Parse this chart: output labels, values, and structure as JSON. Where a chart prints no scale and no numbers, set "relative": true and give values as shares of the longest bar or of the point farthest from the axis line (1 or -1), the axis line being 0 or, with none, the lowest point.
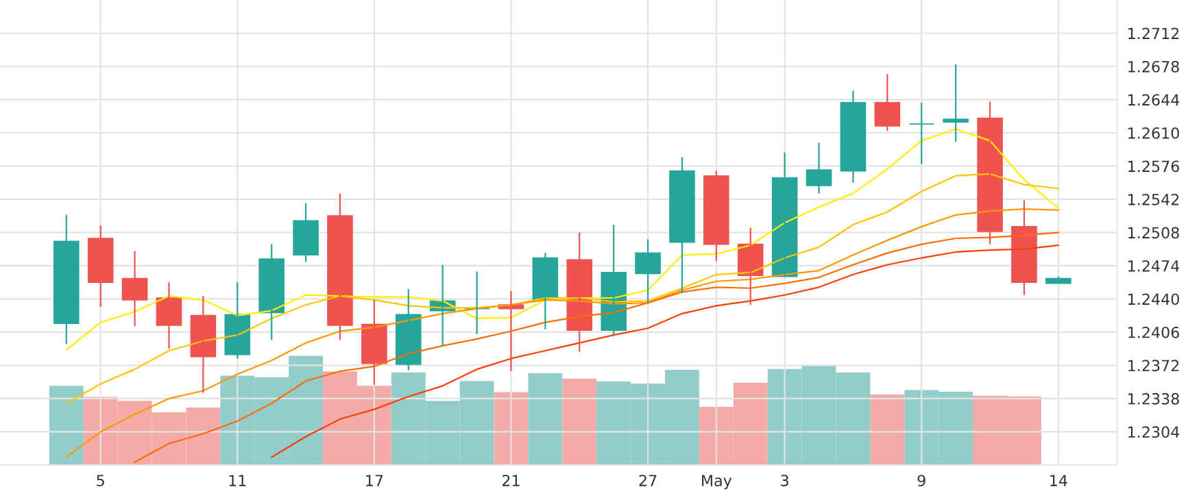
{
  "chart_data": [
    {
      "type": "candlestick",
      "categories": [
        null,
        "5",
        null,
        null,
        null,
        "11",
        null,
        null,
        null,
        "17",
        null,
        null,
        null,
        "21",
        null,
        null,
        null,
        "27",
        null,
        "May",
        null,
        "3",
        null,
        null,
        null,
        "9",
        null,
        null,
        null,
        "14"
      ],
      "ohlc": [
        [
          1.2415,
          1.2526,
          1.2394,
          1.2499
        ],
        [
          1.2502,
          1.2515,
          1.2432,
          1.2457
        ],
        [
          1.2461,
          1.2489,
          1.2412,
          1.2439
        ],
        [
          1.2441,
          1.2457,
          1.2389,
          1.2413
        ],
        [
          1.2423,
          1.2443,
          1.2344,
          1.2381
        ],
        [
          1.2383,
          1.2457,
          1.2379,
          1.2424
        ],
        [
          1.2426,
          1.2496,
          1.2398,
          1.2481
        ],
        [
          1.2485,
          1.2538,
          1.2478,
          1.252
        ],
        [
          1.2525,
          1.2548,
          1.2398,
          1.2413
        ],
        [
          1.2414,
          1.2439,
          1.2352,
          1.2374
        ],
        [
          1.2373,
          1.245,
          1.2367,
          1.2424
        ],
        [
          1.2428,
          1.2475,
          1.2392,
          1.2438
        ],
        [
          1.243,
          1.2468,
          1.2404,
          1.243
        ],
        [
          1.2434,
          1.2448,
          1.2366,
          1.243
        ],
        [
          1.2439,
          1.2487,
          1.2409,
          1.2482
        ],
        [
          1.248,
          1.2508,
          1.2386,
          1.2408
        ],
        [
          1.2408,
          1.2516,
          1.2402,
          1.2467
        ],
        [
          1.2466,
          1.2501,
          1.2436,
          1.2487
        ],
        [
          1.2498,
          1.2585,
          1.2446,
          1.2571
        ],
        [
          1.2566,
          1.2571,
          1.2479,
          1.2496
        ],
        [
          1.2496,
          1.2513,
          1.2434,
          1.2464
        ],
        [
          1.2463,
          1.259,
          1.2463,
          1.2564
        ],
        [
          1.2556,
          1.26,
          1.2548,
          1.2572
        ],
        [
          1.2571,
          1.2653,
          1.2559,
          1.2641
        ],
        [
          1.2641,
          1.267,
          1.2612,
          1.2617
        ],
        [
          1.2619,
          1.2641,
          1.2578,
          1.2619
        ],
        [
          1.2621,
          1.268,
          1.2601,
          1.2624
        ],
        [
          1.2625,
          1.2642,
          1.2496,
          1.2509
        ],
        [
          1.2514,
          1.2541,
          1.2444,
          1.2457
        ],
        [
          1.2456,
          1.2463,
          1.2456,
          1.2461
        ]
      ],
      "colors": [
        "#26a69a",
        "#ef5350",
        "#ef5350",
        "#ef5350",
        "#ef5350",
        "#26a69a",
        "#26a69a",
        "#26a69a",
        "#ef5350",
        "#ef5350",
        "#26a69a",
        "#26a69a",
        "#26a69a",
        "#ef5350",
        "#26a69a",
        "#ef5350",
        "#26a69a",
        "#26a69a",
        "#26a69a",
        "#ef5350",
        "#ef5350",
        "#26a69a",
        "#26a69a",
        "#26a69a",
        "#ef5350",
        "#26a69a",
        "#26a69a",
        "#ef5350",
        "#ef5350",
        "#26a69a"
      ],
      "series": [
        {
          "type": "line",
          "color": "#ffee00",
          "values": [
            1.2388,
            1.2416,
            1.2427,
            1.2443,
            1.2439,
            1.2423,
            1.2428,
            1.2444,
            1.2443,
            1.2442,
            1.2442,
            1.2438,
            1.242,
            1.2421,
            1.2439,
            1.2441,
            1.2441,
            1.2449,
            1.2485,
            1.2486,
            1.2495,
            1.2518,
            1.2534,
            1.2548,
            1.2573,
            1.2602,
            1.2614,
            1.2602,
            1.2562,
            1.2533
          ]
        },
        {
          "type": "line",
          "color": "#ffc400",
          "values": [
            1.2333,
            1.2353,
            1.2368,
            1.2387,
            1.2397,
            1.2403,
            1.242,
            1.2434,
            1.2443,
            1.2439,
            1.2433,
            1.2431,
            1.2431,
            1.2434,
            1.2441,
            1.2441,
            1.2437,
            1.2438,
            1.2451,
            1.2465,
            1.2467,
            1.2482,
            1.2493,
            1.2516,
            1.2529,
            1.255,
            1.2566,
            1.2568,
            1.2557,
            1.2553
          ]
        },
        {
          "type": "line",
          "color": "#ff9800",
          "values": [
            1.2278,
            1.2304,
            1.2322,
            1.2338,
            1.2346,
            1.2363,
            1.2377,
            1.2395,
            1.2407,
            1.2411,
            1.2418,
            1.2425,
            1.243,
            1.2434,
            1.2439,
            1.2438,
            1.2435,
            1.2436,
            1.2449,
            1.2458,
            1.246,
            1.2465,
            1.2469,
            1.2485,
            1.25,
            1.2514,
            1.2526,
            1.253,
            1.2532,
            1.2531
          ]
        },
        {
          "type": "line",
          "color": "#ff6d00",
          "values": [
            null,
            null,
            1.2273,
            1.2292,
            1.2302,
            1.2315,
            1.2333,
            1.2356,
            1.2366,
            1.2371,
            1.2384,
            1.2392,
            1.2399,
            1.2407,
            1.2416,
            1.2422,
            1.2426,
            1.2436,
            1.2447,
            1.2452,
            1.2451,
            1.2456,
            1.2462,
            1.2475,
            1.2487,
            1.2496,
            1.2502,
            1.2503,
            1.2505,
            1.2508
          ]
        },
        {
          "type": "line",
          "color": "#ff3d00",
          "values": [
            null,
            null,
            null,
            null,
            null,
            null,
            1.2278,
            1.2299,
            1.2317,
            1.2327,
            1.234,
            1.2351,
            1.2368,
            1.2379,
            1.2387,
            1.2395,
            1.2403,
            1.241,
            1.2425,
            1.2433,
            1.2438,
            1.2444,
            1.2452,
            1.2465,
            1.2475,
            1.2482,
            1.2488,
            1.249,
            1.2491,
            1.2495
          ]
        }
      ],
      "ylim": [
        1.227,
        1.2746
      ],
      "yticks": [
        1.2304,
        1.2338,
        1.2372,
        1.2406,
        {
          "value": 1.244,
          "label": "1.2440"
        },
        1.2474,
        1.2508,
        1.2542,
        1.2576,
        {
          "value": 1.261,
          "label": "1.2610"
        },
        1.2644,
        1.2678,
        1.2712
      ],
      "grid": true
    },
    {
      "type": "bar",
      "relative": true,
      "categories": [
        null,
        null,
        null,
        null,
        null,
        null,
        null,
        null,
        null,
        null,
        null,
        null,
        null,
        null,
        null,
        null,
        null,
        null,
        null,
        null,
        null,
        null,
        null,
        null,
        null,
        null,
        null,
        null,
        null,
        null
      ],
      "values": [
        0.725,
        0.623,
        0.588,
        0.482,
        0.526,
        0.819,
        0.804,
        1,
        0.857,
        0.725,
        0.848,
        0.588,
        0.769,
        0.667,
        0.842,
        0.792,
        0.766,
        0.746,
        0.871,
        0.532,
        0.754,
        0.88,
        0.909,
        0.848,
        0.646,
        0.687,
        0.67,
        0.635,
        0.629,
        null
      ],
      "colors": [
        "#93cdcb",
        "#f4aba7",
        "#f4aba7",
        "#f4aba7",
        "#f4aba7",
        "#93cdcb",
        "#93cdcb",
        "#93cdcb",
        "#f4aba7",
        "#f4aba7",
        "#93cdcb",
        "#93cdcb",
        "#93cdcb",
        "#f4aba7",
        "#93cdcb",
        "#f4aba7",
        "#93cdcb",
        "#93cdcb",
        "#93cdcb",
        "#f4aba7",
        "#f4aba7",
        "#93cdcb",
        "#93cdcb",
        "#93cdcb",
        "#f4aba7",
        "#93cdcb",
        "#93cdcb",
        "#f4aba7",
        "#f4aba7",
        "#93cdcb"
      ]
    }
  ]
}
